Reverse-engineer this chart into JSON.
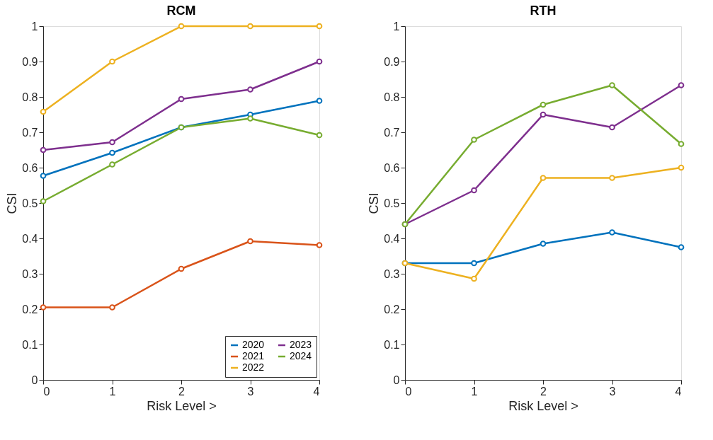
{
  "chart_data": [
    {
      "type": "line",
      "title": "RCM",
      "xlabel": "Risk Level >",
      "ylabel": "CSI",
      "x": [
        0,
        1,
        2,
        3,
        4
      ],
      "xlim": [
        0,
        4
      ],
      "xticks": [
        0,
        1,
        2,
        3,
        4
      ],
      "ylim": [
        0,
        1
      ],
      "yticks": [
        0,
        0.1,
        0.2,
        0.3,
        0.4,
        0.5,
        0.6,
        0.7,
        0.8,
        0.9,
        1
      ],
      "grid": false,
      "legend": "bottom right",
      "marker": "circle",
      "line_style": "solid",
      "series": [
        {
          "name": "2020",
          "color": "#0072bd",
          "values": [
            0.577,
            0.642,
            0.714,
            0.75,
            0.789
          ]
        },
        {
          "name": "2021",
          "color": "#d95319",
          "values": [
            0.205,
            0.205,
            0.314,
            0.392,
            0.381
          ]
        },
        {
          "name": "2022",
          "color": "#edb120",
          "values": [
            0.758,
            0.9,
            1,
            1,
            1
          ]
        },
        {
          "name": "2023",
          "color": "#7e2f8e",
          "values": [
            0.65,
            0.672,
            0.794,
            0.821,
            0.9
          ]
        },
        {
          "name": "2024",
          "color": "#77ac30",
          "values": [
            0.505,
            0.609,
            0.714,
            0.739,
            0.692
          ]
        }
      ]
    },
    {
      "type": "line",
      "title": "RTH",
      "xlabel": "Risk Level >",
      "ylabel": "CSI",
      "x": [
        0,
        1,
        2,
        3,
        4
      ],
      "xlim": [
        0,
        4
      ],
      "xticks": [
        0,
        1,
        2,
        3,
        4
      ],
      "ylim": [
        0,
        1
      ],
      "yticks": [
        0,
        0.1,
        0.2,
        0.3,
        0.4,
        0.5,
        0.6,
        0.7,
        0.8,
        0.9,
        1
      ],
      "grid": false,
      "legend": false,
      "marker": "circle",
      "line_style": "solid",
      "series": [
        {
          "color": "#0072bd",
          "values": [
            0.33,
            0.33,
            0.385,
            0.417,
            0.375
          ]
        },
        {
          "color": "#edb120",
          "values": [
            0.33,
            0.286,
            0.571,
            0.571,
            0.6
          ]
        },
        {
          "color": "#7e2f8e",
          "values": [
            0.44,
            0.536,
            0.75,
            0.714,
            0.833
          ]
        },
        {
          "color": "#77ac30",
          "values": [
            0.44,
            0.679,
            0.778,
            0.833,
            0.667
          ]
        }
      ]
    }
  ]
}
